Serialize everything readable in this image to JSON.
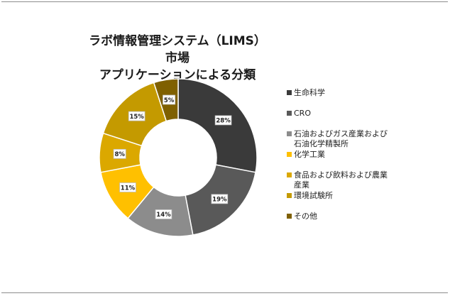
{
  "chart_data": {
    "type": "pie",
    "donut": true,
    "title_lines": [
      "ラボ情報管理システム（LIMS）市場",
      "アプリケーションによる分類"
    ],
    "categories": [
      "生命科学",
      "CRO",
      "石油およびガス産業および石油化学精製所",
      "化学工業",
      "食品および飲料および農業産業",
      "環境試験所",
      "その他"
    ],
    "legend_lines": [
      [
        "生命科学"
      ],
      [
        "CRO"
      ],
      [
        "石油およびガス産業および",
        "石油化学精製所"
      ],
      [
        "化学工業"
      ],
      [
        "食品および飲料および農業",
        "産業"
      ],
      [
        "環境試験所"
      ],
      [
        "その他"
      ]
    ],
    "values": [
      28,
      19,
      14,
      11,
      8,
      15,
      5
    ],
    "data_labels": [
      "28%",
      "19%",
      "14%",
      "11%",
      "8%",
      "15%",
      "5%"
    ],
    "colors": [
      "#3a3a3a",
      "#595959",
      "#8c8c8c",
      "#ffc000",
      "#dba800",
      "#c49a00",
      "#7f6000"
    ],
    "legend_position": "right"
  }
}
